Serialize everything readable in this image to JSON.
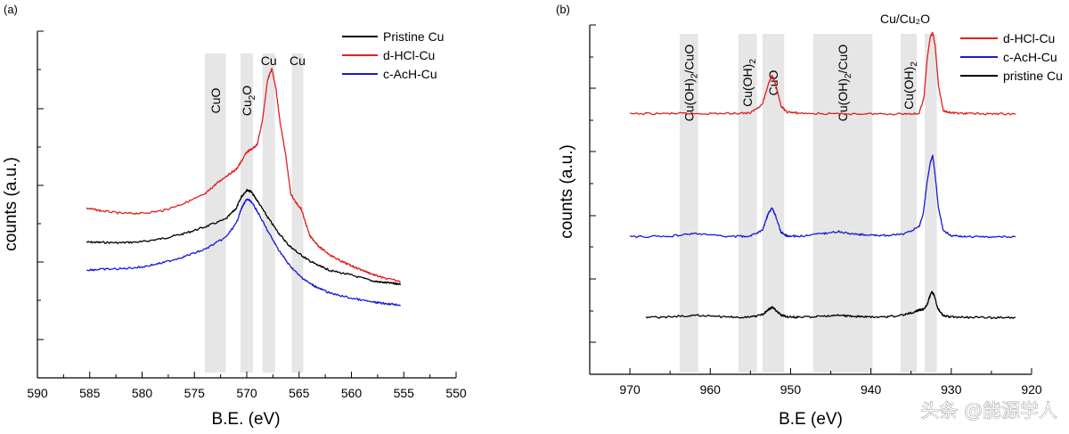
{
  "watermark": "头条 @能源学人",
  "chart_data": [
    {
      "id": "a",
      "panel_label": "(a)",
      "type": "line",
      "xlabel": "B.E. (eV)",
      "ylabel": "counts (a.u.)",
      "xlim": [
        590,
        550
      ],
      "x_ticks": [
        590,
        585,
        580,
        575,
        570,
        565,
        560,
        555,
        550
      ],
      "ylim": [
        0,
        100
      ],
      "bands": [
        {
          "label": "CuO",
          "range": [
            574,
            572
          ],
          "label_sub": ""
        },
        {
          "label": "Cu",
          "label_sub": "2",
          "label_tail": "O",
          "range": [
            570.6,
            569.4
          ]
        },
        {
          "label": "Cu",
          "label_sub": "",
          "range": [
            568.5,
            567.3
          ]
        },
        {
          "label": "Cu",
          "label_sub": "",
          "range": [
            565.7,
            564.6
          ]
        }
      ],
      "series": [
        {
          "name": "Pristine Cu",
          "color": "#000000",
          "x": [
            585.3,
            584,
            582,
            580,
            578,
            576,
            574,
            572,
            571,
            570.5,
            570,
            569.6,
            569,
            568,
            567,
            566,
            565,
            564,
            563,
            562,
            560,
            558,
            557,
            556,
            555.3
          ],
          "y": [
            34.8,
            34.7,
            34.6,
            34.9,
            36.0,
            37.6,
            39.8,
            42.4,
            46.0,
            49.8,
            52.0,
            51.5,
            48.5,
            43.0,
            38.0,
            33.8,
            31.0,
            28.6,
            26.8,
            25.4,
            23.9,
            22.0,
            21.5,
            21.2,
            21.0
          ]
        },
        {
          "name": "d-HCl-Cu",
          "color": "#e02020",
          "x": [
            585.3,
            584,
            582,
            580,
            578,
            576,
            574,
            573,
            572,
            571,
            570.5,
            570,
            569.5,
            569,
            568.5,
            568,
            567.6,
            567.2,
            566.8,
            566.3,
            565.8,
            565.3,
            564.8,
            564,
            563,
            562,
            561,
            560,
            559,
            558,
            557,
            555.3
          ],
          "y": [
            46.0,
            45.2,
            44.3,
            44.3,
            45.2,
            47.6,
            50.6,
            53.8,
            56.5,
            58.8,
            61.5,
            64.5,
            65.6,
            67.0,
            75.0,
            88.5,
            92.0,
            85.0,
            74.0,
            64.0,
            50.8,
            47.8,
            45.8,
            37.0,
            33.0,
            30.5,
            28.5,
            27.0,
            25.6,
            24.2,
            23.0,
            21.8
          ]
        },
        {
          "name": "c-AcH-Cu",
          "color": "#1a1ad6",
          "x": [
            585.3,
            584,
            582,
            580,
            578,
            576,
            574,
            572,
            571,
            570.5,
            570,
            569.6,
            569,
            568,
            567,
            566,
            565,
            564,
            563,
            562,
            560,
            558,
            557,
            556,
            555.3
          ],
          "y": [
            25.6,
            25.8,
            26.0,
            26.6,
            28.0,
            30.0,
            32.4,
            36.4,
            41.0,
            46.0,
            49.0,
            48.3,
            45.0,
            38.5,
            32.5,
            27.5,
            23.8,
            21.2,
            19.4,
            17.9,
            16.3,
            15.0,
            14.6,
            14.3,
            14.0
          ]
        }
      ]
    },
    {
      "id": "b",
      "panel_label": "(b)",
      "type": "line",
      "xlabel": "B.E (eV)",
      "ylabel": "counts (a.u.)",
      "xlim": [
        975,
        920
      ],
      "x_ticks": [
        970,
        960,
        950,
        940,
        930,
        920
      ],
      "ylim": [
        0,
        100
      ],
      "top_label": "Cu/Cu₂O",
      "bands": [
        {
          "label": "Cu(OH)",
          "label_sub": "2",
          "label_tail": "/CuO",
          "range": [
            963.8,
            961.5
          ]
        },
        {
          "label": "Cu(OH)",
          "label_sub": "2",
          "label_tail": "",
          "range": [
            956.5,
            954.2
          ]
        },
        {
          "label": "CuO",
          "label_sub": "",
          "label_tail": "",
          "range": [
            953.5,
            950.8
          ]
        },
        {
          "label": "Cu(OH)",
          "label_sub": "2",
          "label_tail": "/CuO",
          "range": [
            947.2,
            939.8
          ]
        },
        {
          "label": "Cu(OH)",
          "label_sub": "2",
          "label_tail": "",
          "range": [
            936.3,
            934.3
          ]
        },
        {
          "label": "",
          "label_sub": "",
          "label_tail": "",
          "range": [
            933.3,
            931.8
          ]
        }
      ],
      "series": [
        {
          "name": "d-HCl-Cu",
          "color": "#e02020",
          "x": [
            970,
            965,
            962,
            958,
            955,
            953.5,
            952.8,
            952.3,
            951.8,
            951.2,
            950.5,
            949,
            945,
            940,
            936,
            934,
            933.4,
            933,
            932.6,
            932.3,
            932,
            931.6,
            931,
            930,
            928,
            925,
            922
          ],
          "y": [
            75.0,
            75.1,
            75.1,
            75.1,
            75.3,
            78.0,
            84.0,
            87.0,
            83.5,
            77.5,
            75.6,
            75.2,
            75.0,
            75.0,
            75.0,
            75.1,
            80.0,
            92.0,
            99.0,
            100.0,
            96.0,
            84.0,
            76.0,
            75.3,
            75.1,
            75.0,
            75.0
          ]
        },
        {
          "name": "c-AcH-Cu",
          "color": "#1a1ad6",
          "x": [
            970,
            965,
            962,
            958,
            955,
            953.5,
            952.8,
            952.3,
            951.8,
            951.2,
            950.5,
            949,
            946,
            944,
            942,
            940,
            938,
            936,
            934,
            933.5,
            933,
            932.6,
            932.3,
            932,
            931.6,
            931,
            930,
            928,
            925,
            922
          ],
          "y": [
            37.0,
            37.2,
            38.0,
            37.1,
            37.2,
            39.0,
            44.0,
            46.0,
            43.0,
            38.5,
            37.3,
            37.1,
            38.0,
            38.6,
            37.8,
            37.5,
            37.4,
            37.8,
            40.0,
            44.0,
            54.0,
            60.0,
            62.0,
            56.0,
            46.0,
            39.0,
            37.4,
            37.0,
            37.0,
            37.0
          ]
        },
        {
          "name": "pristine Cu",
          "color": "#000000",
          "x": [
            968,
            965,
            962,
            958,
            955,
            953.5,
            952.8,
            952.3,
            951.8,
            951.2,
            950.5,
            949,
            946,
            944,
            942,
            940,
            938,
            936,
            934.5,
            934,
            933.5,
            933,
            932.7,
            932.4,
            932.1,
            931.7,
            931,
            930,
            928,
            925,
            922
          ],
          "y": [
            12.0,
            12.2,
            12.8,
            12.2,
            12.2,
            12.9,
            14.4,
            15.2,
            14.2,
            12.8,
            12.3,
            12.1,
            12.4,
            12.7,
            12.4,
            12.2,
            12.2,
            12.8,
            13.8,
            14.4,
            14.6,
            16.0,
            18.4,
            20.0,
            18.8,
            15.0,
            12.6,
            12.2,
            12.1,
            12.0,
            12.0
          ]
        }
      ]
    }
  ]
}
